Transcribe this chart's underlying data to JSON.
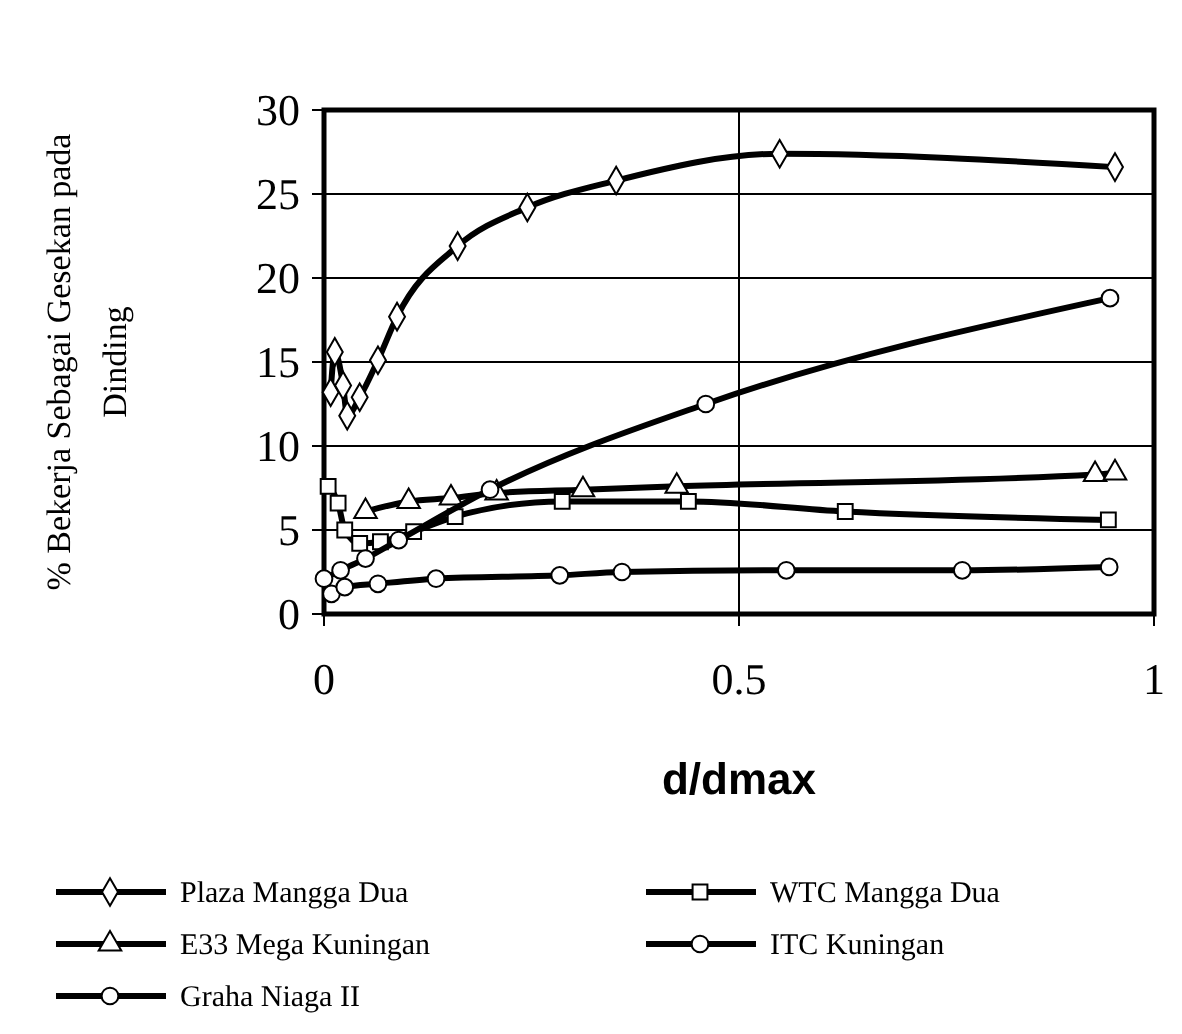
{
  "chart_data": {
    "type": "line",
    "xlabel": "d/dmax",
    "ylabel": "% Bekerja Sebagai Gesekan pada Dinding",
    "xlim": [
      0,
      1
    ],
    "xticks": [
      0,
      0.5,
      1
    ],
    "ylim": [
      0,
      30
    ],
    "yticks": [
      0,
      5,
      10,
      15,
      20,
      25,
      30
    ],
    "grid": true,
    "legend": "bottom",
    "line_style": "solid",
    "series": [
      {
        "name": "Plaza Mangga Dua",
        "color": "#000000",
        "marker": "diamond",
        "x": [
          0.008,
          0.013,
          0.023,
          0.028,
          0.043,
          0.065,
          0.088,
          0.161,
          0.245,
          0.352,
          0.549,
          0.953
        ],
        "values": [
          13.2,
          15.6,
          13.6,
          11.8,
          12.9,
          15.1,
          17.7,
          21.9,
          24.2,
          25.8,
          27.4,
          26.6
        ]
      },
      {
        "name": "WTC Mangga Dua",
        "color": "#000000",
        "marker": "square",
        "x": [
          0.005,
          0.017,
          0.025,
          0.043,
          0.068,
          0.108,
          0.158,
          0.287,
          0.439,
          0.628,
          0.945
        ],
        "values": [
          7.6,
          6.6,
          5.0,
          4.2,
          4.3,
          4.9,
          5.8,
          6.7,
          6.7,
          6.1,
          5.6
        ]
      },
      {
        "name": "E33 Mega Kuningan",
        "color": "#000000",
        "marker": "triangle",
        "x": [
          0.05,
          0.102,
          0.153,
          0.208,
          0.312,
          0.425,
          0.929,
          0.953
        ],
        "values": [
          6.1,
          6.7,
          6.9,
          7.2,
          7.4,
          7.6,
          8.3,
          8.4
        ]
      },
      {
        "name": "ITC Kuningan",
        "color": "#000000",
        "marker": "circle",
        "x": [
          0,
          0.02,
          0.05,
          0.09,
          0.2,
          0.46,
          0.947
        ],
        "values": [
          2.1,
          2.6,
          3.3,
          4.4,
          7.4,
          12.5,
          18.8
        ]
      },
      {
        "name": "Graha Niaga II",
        "color": "#000000",
        "marker": "circle",
        "x": [
          0.009,
          0.025,
          0.065,
          0.135,
          0.284,
          0.359,
          0.557,
          0.769,
          0.946
        ],
        "values": [
          1.2,
          1.6,
          1.8,
          2.1,
          2.3,
          2.5,
          2.6,
          2.6,
          2.8
        ]
      }
    ]
  }
}
